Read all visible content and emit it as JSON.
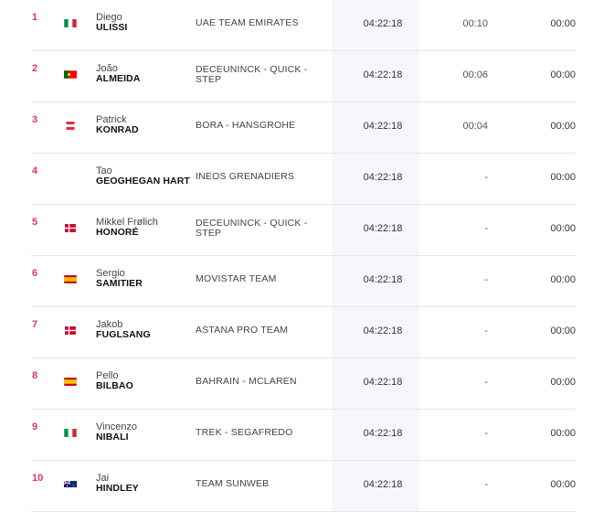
{
  "rows": [
    {
      "rank": "1",
      "country": "italy-flag-icon",
      "first": "Diego",
      "last": "ULISSI",
      "team": "UAE TEAM EMIRATES",
      "time": "04:22:18",
      "gap": "00:10",
      "bonus": "00:00"
    },
    {
      "rank": "2",
      "country": "portugal-flag-icon",
      "first": "João",
      "last": "ALMEIDA",
      "team": "DECEUNINCK - QUICK - STEP",
      "time": "04:22:18",
      "gap": "00:06",
      "bonus": "00:00"
    },
    {
      "rank": "3",
      "country": "austria-flag-icon",
      "first": "Patrick",
      "last": "KONRAD",
      "team": "BORA - HANSGROHE",
      "time": "04:22:18",
      "gap": "00:04",
      "bonus": "00:00"
    },
    {
      "rank": "4",
      "country": "",
      "first": "Tao",
      "last": "GEOGHEGAN HART",
      "team": "INEOS GRENADIERS",
      "time": "04:22:18",
      "gap": "-",
      "bonus": "00:00"
    },
    {
      "rank": "5",
      "country": "denmark-flag-icon",
      "first": "Mikkel Frølich",
      "last": "HONORÉ",
      "team": "DECEUNINCK - QUICK - STEP",
      "time": "04:22:18",
      "gap": "-",
      "bonus": "00:00"
    },
    {
      "rank": "6",
      "country": "spain-flag-icon",
      "first": "Sergio",
      "last": "SAMITIER",
      "team": "MOVISTAR TEAM",
      "time": "04:22:18",
      "gap": "-",
      "bonus": "00:00"
    },
    {
      "rank": "7",
      "country": "denmark-flag-icon",
      "first": "Jakob",
      "last": "FUGLSANG",
      "team": "ASTANA PRO TEAM",
      "time": "04:22:18",
      "gap": "-",
      "bonus": "00:00"
    },
    {
      "rank": "8",
      "country": "spain-flag-icon",
      "first": "Pello",
      "last": "BILBAO",
      "team": "BAHRAIN - MCLAREN",
      "time": "04:22:18",
      "gap": "-",
      "bonus": "00:00"
    },
    {
      "rank": "9",
      "country": "italy-flag-icon",
      "first": "Vincenzo",
      "last": "NIBALI",
      "team": "TREK - SEGAFREDO",
      "time": "04:22:18",
      "gap": "-",
      "bonus": "00:00"
    },
    {
      "rank": "10",
      "country": "australia-flag-icon",
      "first": "Jai",
      "last": "HINDLEY",
      "team": "TEAM SUNWEB",
      "time": "04:22:18",
      "gap": "-",
      "bonus": "00:00"
    }
  ],
  "colors": {
    "rank": "#e0306e",
    "time_column_bg": "#f7f7fb",
    "separator": "#e6e6ee"
  }
}
